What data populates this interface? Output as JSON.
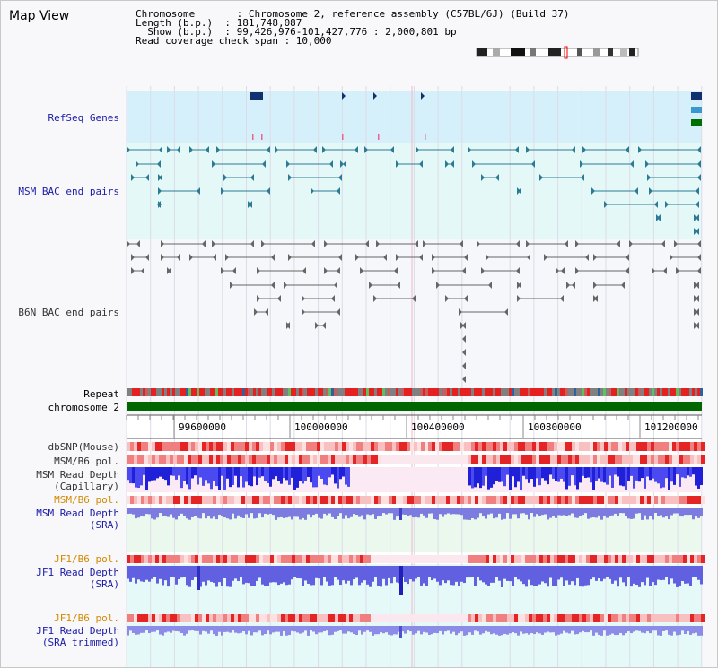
{
  "title": "Map View",
  "info": {
    "line1": "Chromosome       : Chromosome 2, reference assembly (C57BL/6J) (Build 37)",
    "line2": "Length (b.p.)  : 181,748,087",
    "line3": "  Show (b.p.)  : 99,426,976-101,427,776 : 2,000,801 bp",
    "line4": "Read coverage check span : 10,000"
  },
  "tracks": {
    "refseq": "RefSeq Genes",
    "msm_bac": "MSM BAC end pairs",
    "b6n_bac": "B6N BAC end pairs",
    "repeat": "Repeat",
    "chrom": "chromosome 2",
    "dbsnp": "dbSNP(Mouse)",
    "msm_b6_pol": "MSM/B6 pol.",
    "msm_read_cap_1": "MSM Read Depth",
    "msm_read_cap_2": "(Capillary)",
    "msm_b6_pol2": "MSM/B6 pol.",
    "msm_read_sra_1": "MSM Read Depth",
    "msm_read_sra_2": "(SRA)",
    "jf1_pol": "JF1/B6 pol.",
    "jf1_read_1": "JF1 Read Depth",
    "jf1_read_2": "(SRA)",
    "jf1_pol2": "JF1/B6 pol.",
    "jf1_trim_1": "JF1 Read Depth",
    "jf1_trim_2": "(SRA trimmed)"
  },
  "axis_ticks": [
    "99600000",
    "100000000",
    "100400000",
    "100800000",
    "101200000"
  ],
  "colors": {
    "chrom": "#006600",
    "accent_blue": "#1a1aa6",
    "orange": "#d28a00"
  }
}
